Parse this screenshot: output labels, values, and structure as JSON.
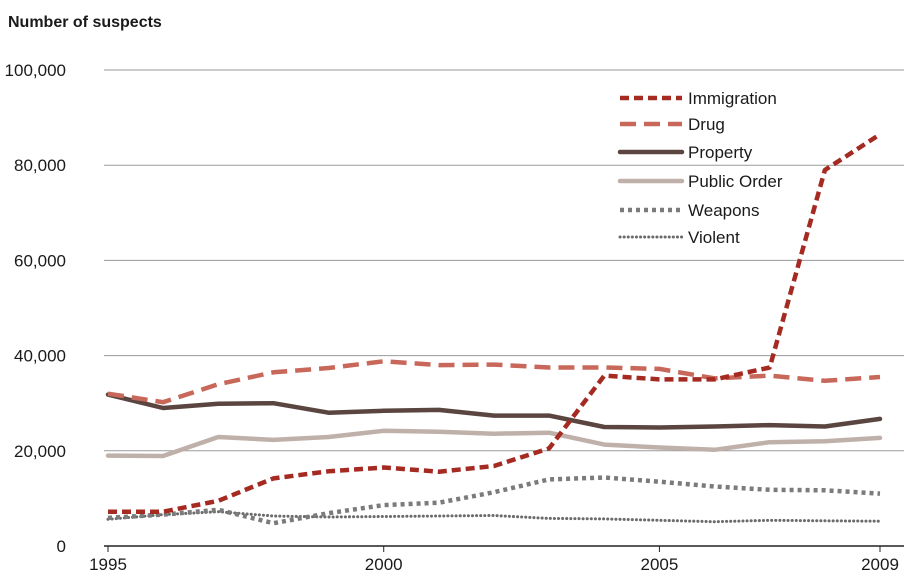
{
  "chart_data": {
    "type": "line",
    "title": "",
    "ylabel": "Number of suspects",
    "xlabel": "",
    "x": [
      1995,
      1996,
      1997,
      1998,
      1999,
      2000,
      2001,
      2002,
      2003,
      2004,
      2005,
      2006,
      2007,
      2008,
      2009
    ],
    "xticks": [
      1995,
      2000,
      2005,
      2009
    ],
    "xtick_labels": [
      "1995",
      "2000",
      "2005",
      "2009"
    ],
    "ylim": [
      0,
      100000
    ],
    "yticks": [
      0,
      20000,
      40000,
      60000,
      80000,
      100000
    ],
    "ytick_labels": [
      "0",
      "20,000",
      "40,000",
      "60,000",
      "80,000",
      "100,000"
    ],
    "grid": "horizontal",
    "legend_position": "top-right",
    "series": [
      {
        "name": "Immigration",
        "color": "#a52a22",
        "style": "short-dash",
        "values": [
          7200,
          7200,
          9500,
          14200,
          15700,
          16500,
          15600,
          16800,
          20500,
          35800,
          35000,
          35000,
          37500,
          79000,
          86500
        ]
      },
      {
        "name": "Drug",
        "color": "#c8685a",
        "style": "long-dash",
        "values": [
          32000,
          30200,
          34000,
          36500,
          37400,
          38800,
          38000,
          38100,
          37500,
          37500,
          37200,
          35200,
          35800,
          34700,
          35500
        ]
      },
      {
        "name": "Property",
        "color": "#5a4540",
        "style": "solid",
        "values": [
          31800,
          29000,
          29900,
          30000,
          28000,
          28400,
          28600,
          27400,
          27400,
          25000,
          24900,
          25100,
          25400,
          25100,
          26700
        ]
      },
      {
        "name": "Public Order",
        "color": "#bfb0aa",
        "style": "solid",
        "values": [
          19000,
          18900,
          22900,
          22300,
          22900,
          24200,
          24000,
          23600,
          23800,
          21300,
          20700,
          20200,
          21800,
          22000,
          22700
        ]
      },
      {
        "name": "Weapons",
        "color": "#7b7b7b",
        "style": "dotted",
        "values": [
          5900,
          6600,
          7600,
          4800,
          6900,
          8600,
          9100,
          11300,
          14000,
          14400,
          13500,
          12500,
          11800,
          11700,
          11000
        ]
      },
      {
        "name": "Violent",
        "color": "#6b6b6b",
        "style": "fine-dotted",
        "values": [
          5600,
          6600,
          7200,
          6300,
          6100,
          6200,
          6300,
          6400,
          5800,
          5700,
          5400,
          5100,
          5400,
          5300,
          5200
        ]
      }
    ]
  }
}
